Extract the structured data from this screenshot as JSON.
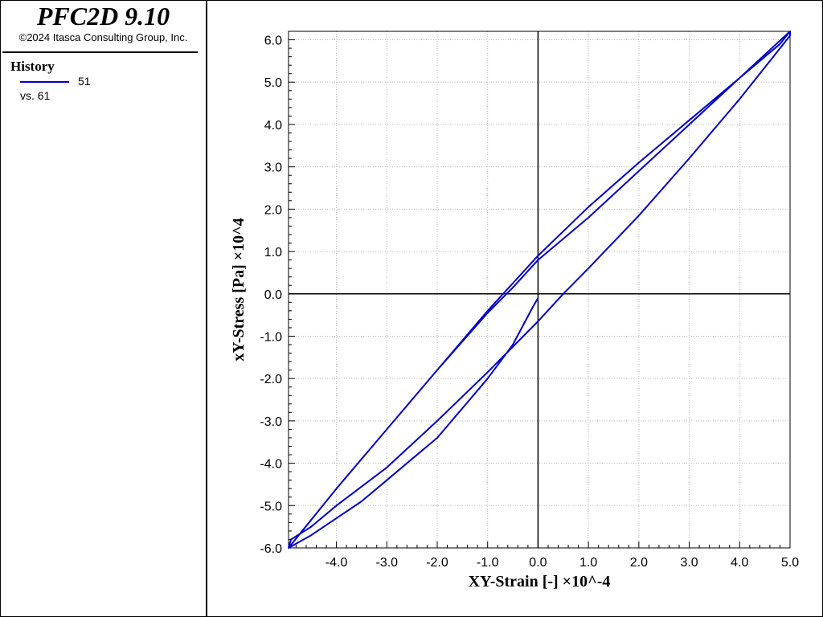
{
  "app": {
    "title": "PFC2D 9.10",
    "copyright": "©2024 Itasca Consulting Group, Inc."
  },
  "legend": {
    "heading": "History",
    "series_id": "51",
    "vs_label": "vs. 61",
    "line_color": "#0000cc"
  },
  "chart_data": {
    "type": "line",
    "xlabel": "XY-Strain [-] ×10^-4",
    "ylabel": "xY-Stress [Pa] ×10^4",
    "xlim": [
      -4.95,
      5.0
    ],
    "ylim": [
      -6.0,
      6.2
    ],
    "x_ticks": [
      -4.0,
      -3.0,
      -2.0,
      -1.0,
      0.0,
      1.0,
      2.0,
      3.0,
      4.0,
      5.0
    ],
    "x_tick_labels": [
      "-4.0",
      "-3.0",
      "-2.0",
      "-1.0",
      "0.0",
      "1.0",
      "2.0",
      "3.0",
      "4.0",
      "5.0"
    ],
    "y_ticks": [
      -6.0,
      -5.0,
      -4.0,
      -3.0,
      -2.0,
      -1.0,
      0.0,
      1.0,
      2.0,
      3.0,
      4.0,
      5.0,
      6.0
    ],
    "y_tick_labels": [
      "-6.0",
      "-5.0",
      "-4.0",
      "-3.0",
      "-2.0",
      "-1.0",
      "0.0",
      "1.0",
      "2.0",
      "3.0",
      "4.0",
      "5.0",
      "6.0"
    ],
    "grid": true,
    "color": "#0000cc",
    "series": [
      {
        "x": [
          0.0,
          -0.1,
          -0.5,
          -1.0,
          -1.5,
          -2.0,
          -2.5,
          -3.0,
          -3.5,
          -4.0,
          -4.5,
          -4.95,
          -4.9,
          -4.5,
          -4.0,
          -3.0,
          -2.0,
          -1.0,
          0.0,
          0.5,
          1.0,
          2.0,
          3.0,
          4.0,
          4.8,
          5.0,
          5.0,
          4.0,
          3.0,
          2.0,
          1.0,
          0.0,
          -0.5,
          -1.0,
          -2.0,
          -3.0,
          -4.0,
          -4.95,
          -4.0,
          -3.0,
          -2.0,
          -1.0,
          0.0,
          1.0,
          2.0,
          3.0,
          4.0,
          4.8,
          5.0
        ],
        "y": [
          -0.1,
          -0.3,
          -1.2,
          -2.0,
          -2.7,
          -3.4,
          -3.9,
          -4.4,
          -4.9,
          -5.3,
          -5.7,
          -6.0,
          -5.8,
          -5.5,
          -5.0,
          -4.1,
          -3.0,
          -1.85,
          -0.65,
          0.0,
          0.6,
          1.85,
          3.2,
          4.6,
          5.8,
          6.1,
          6.2,
          5.1,
          4.0,
          2.9,
          1.8,
          0.8,
          0.15,
          -0.45,
          -1.8,
          -3.2,
          -4.6,
          -6.0,
          -4.6,
          -3.2,
          -1.8,
          -0.4,
          0.9,
          2.05,
          3.1,
          4.1,
          5.1,
          5.9,
          6.2
        ]
      }
    ]
  }
}
